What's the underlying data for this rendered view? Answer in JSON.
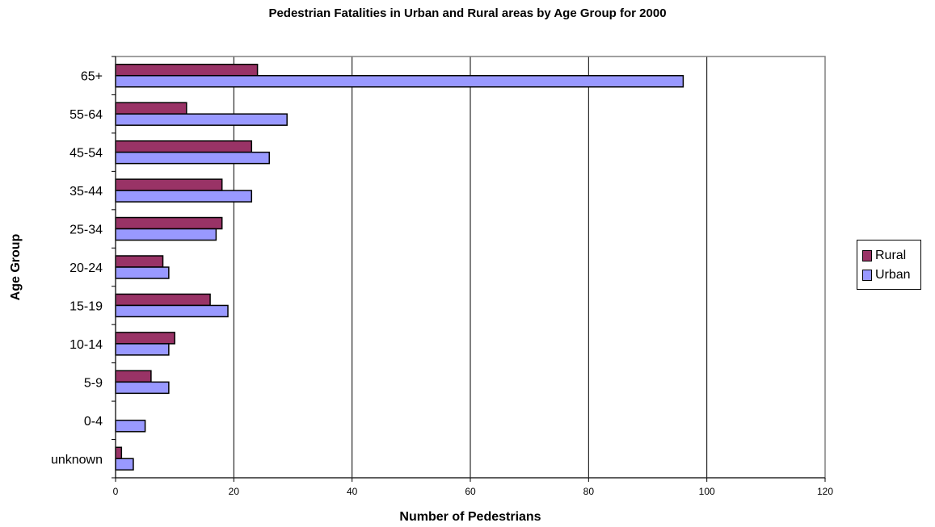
{
  "chart_data": {
    "type": "bar",
    "orientation": "horizontal",
    "title": "Pedestrian Fatalities in Urban and Rural areas by Age Group for 2000",
    "xlabel": "Number of Pedestrians",
    "ylabel": "Age Group",
    "xlim": [
      0,
      120
    ],
    "xticks": [
      0,
      20,
      40,
      60,
      80,
      100,
      120
    ],
    "grid": "vertical",
    "legend_position": "right",
    "categories": [
      "65+",
      "55-64",
      "45-54",
      "35-44",
      "25-34",
      "20-24",
      "15-19",
      "10-14",
      "5-9",
      "0-4",
      "unknown"
    ],
    "series": [
      {
        "name": "Rural",
        "color": "#993366",
        "values": [
          24,
          12,
          23,
          18,
          18,
          8,
          16,
          10,
          6,
          0,
          1
        ]
      },
      {
        "name": "Urban",
        "color": "#9999FF",
        "values": [
          96,
          29,
          26,
          23,
          17,
          9,
          19,
          9,
          9,
          5,
          3
        ]
      }
    ]
  }
}
